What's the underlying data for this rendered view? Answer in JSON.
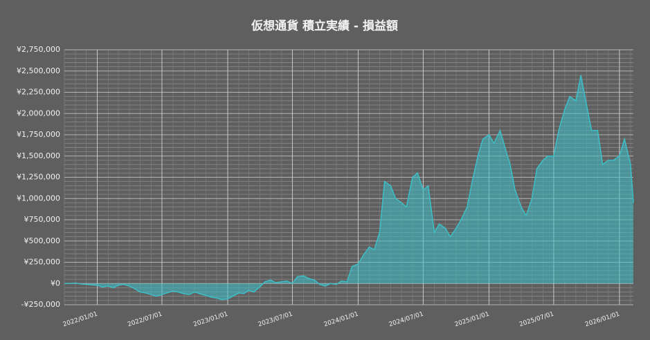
{
  "chart_data": {
    "type": "area",
    "title": "仮想通貨 積立実績 - 損益額",
    "x": [
      "2021/10/01",
      "2021/10/15",
      "2021/11/01",
      "2021/11/15",
      "2021/12/01",
      "2021/12/15",
      "2022/01/01",
      "2022/01/15",
      "2022/02/01",
      "2022/02/15",
      "2022/03/01",
      "2022/03/15",
      "2022/04/01",
      "2022/04/15",
      "2022/05/01",
      "2022/05/15",
      "2022/06/01",
      "2022/06/15",
      "2022/07/01",
      "2022/07/15",
      "2022/08/01",
      "2022/08/15",
      "2022/09/01",
      "2022/09/15",
      "2022/10/01",
      "2022/10/15",
      "2022/11/01",
      "2022/11/15",
      "2022/12/01",
      "2022/12/15",
      "2023/01/01",
      "2023/01/15",
      "2023/02/01",
      "2023/02/15",
      "2023/03/01",
      "2023/03/15",
      "2023/04/01",
      "2023/04/15",
      "2023/05/01",
      "2023/05/15",
      "2023/06/01",
      "2023/06/15",
      "2023/07/01",
      "2023/07/15",
      "2023/08/01",
      "2023/08/15",
      "2023/09/01",
      "2023/09/15",
      "2023/10/01",
      "2023/10/15",
      "2023/11/01",
      "2023/11/15",
      "2023/12/01",
      "2023/12/15",
      "2024/01/01",
      "2024/01/15",
      "2024/02/01",
      "2024/02/15",
      "2024/03/01",
      "2024/03/15",
      "2024/04/01",
      "2024/04/15",
      "2024/05/01",
      "2024/05/15",
      "2024/06/01",
      "2024/06/15",
      "2024/07/01",
      "2024/07/15",
      "2024/08/01",
      "2024/08/15",
      "2024/09/01",
      "2024/09/15",
      "2024/10/01",
      "2024/10/15",
      "2024/11/01",
      "2024/11/15",
      "2024/12/01",
      "2024/12/15",
      "2025/01/01",
      "2025/01/15",
      "2025/02/01",
      "2025/02/15",
      "2025/03/01",
      "2025/03/15",
      "2025/04/01",
      "2025/04/15",
      "2025/05/01",
      "2025/05/15",
      "2025/06/01",
      "2025/06/15",
      "2025/07/01",
      "2025/07/15",
      "2025/08/01",
      "2025/08/15",
      "2025/09/01",
      "2025/09/15",
      "2025/10/01",
      "2025/10/15",
      "2025/11/01",
      "2025/11/15",
      "2025/12/01",
      "2025/12/15",
      "2026/01/01",
      "2026/01/15",
      "2026/02/01",
      "2026/02/09"
    ],
    "series": [
      {
        "name": "損益額",
        "color": "#3dbfc8",
        "values": [
          0,
          0,
          5000,
          -5000,
          -10000,
          -15000,
          -20000,
          -40000,
          -30000,
          -50000,
          -20000,
          -10000,
          -30000,
          -60000,
          -100000,
          -110000,
          -130000,
          -150000,
          -130000,
          -110000,
          -90000,
          -100000,
          -120000,
          -130000,
          -100000,
          -120000,
          -140000,
          -160000,
          -170000,
          -190000,
          -180000,
          -150000,
          -110000,
          -120000,
          -80000,
          -100000,
          -40000,
          20000,
          40000,
          10000,
          20000,
          30000,
          0,
          80000,
          90000,
          60000,
          40000,
          -10000,
          -30000,
          0,
          -10000,
          30000,
          20000,
          200000,
          230000,
          330000,
          430000,
          400000,
          600000,
          1200000,
          1150000,
          1000000,
          950000,
          900000,
          1250000,
          1300000,
          1100000,
          1150000,
          600000,
          700000,
          650000,
          550000,
          650000,
          750000,
          900000,
          1200000,
          1500000,
          1700000,
          1750000,
          1650000,
          1800000,
          1600000,
          1400000,
          1100000,
          900000,
          800000,
          1000000,
          1350000,
          1450000,
          1500000,
          1500000,
          1800000,
          2050000,
          2200000,
          2150000,
          2450000,
          2100000,
          1800000,
          1800000,
          1400000,
          1450000,
          1450000,
          1500000,
          1700000,
          1400000,
          950000
        ]
      }
    ],
    "xlim": [
      "2021/10/01",
      "2026/02/09"
    ],
    "xticks": [
      "2022/01/01",
      "2022/07/01",
      "2023/01/01",
      "2023/07/01",
      "2024/01/01",
      "2024/07/01",
      "2025/01/01",
      "2025/07/01",
      "2026/01/01"
    ],
    "ylim": [
      -250000,
      2750000
    ],
    "yticks": [
      {
        "value": -250000,
        "label": "-¥250,000"
      },
      {
        "value": 0,
        "label": "¥0"
      },
      {
        "value": 250000,
        "label": "¥250,000"
      },
      {
        "value": 500000,
        "label": "¥500,000"
      },
      {
        "value": 750000,
        "label": "¥750,000"
      },
      {
        "value": 1000000,
        "label": "¥1,000,000"
      },
      {
        "value": 1250000,
        "label": "¥1,250,000"
      },
      {
        "value": 1500000,
        "label": "¥1,500,000"
      },
      {
        "value": 1750000,
        "label": "¥1,750,000"
      },
      {
        "value": 2000000,
        "label": "¥2,000,000"
      },
      {
        "value": 2250000,
        "label": "¥2,250,000"
      },
      {
        "value": 2500000,
        "label": "¥2,500,000"
      },
      {
        "value": 2750000,
        "label": "¥2,750,000"
      }
    ],
    "grid": true
  }
}
